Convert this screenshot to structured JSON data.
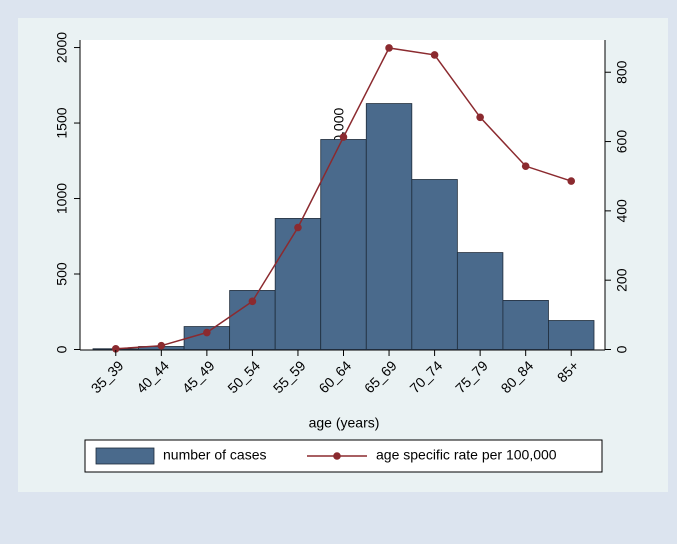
{
  "chart_data": {
    "type": "bar-line",
    "x_label": "age (years)",
    "y2_label": "age specific rate per 100,000",
    "categories": [
      "35_39",
      "40_44",
      "45_49",
      "50_54",
      "55_59",
      "60_64",
      "65_69",
      "70_74",
      "75_79",
      "80_84",
      "85+"
    ],
    "series": [
      {
        "name": "number of cases",
        "type": "bar",
        "color": "#4a6a8c",
        "values": [
          5,
          20,
          152,
          391,
          868,
          1391,
          1629,
          1126,
          642,
          325,
          192
        ]
      },
      {
        "name": "age specific rate per 100,000",
        "type": "line",
        "axis": "y2",
        "color": "#8b2a2f",
        "values": [
          2,
          11,
          49,
          139,
          352,
          613,
          870,
          850,
          670,
          529,
          486
        ]
      }
    ],
    "ylim": [
      0,
      2050
    ],
    "yticks": [
      0,
      500,
      1000,
      1500,
      2000
    ],
    "y2lim": [
      0,
      893
    ],
    "y2ticks": [
      0,
      200,
      400,
      600,
      800
    ],
    "legend": "bottom"
  }
}
